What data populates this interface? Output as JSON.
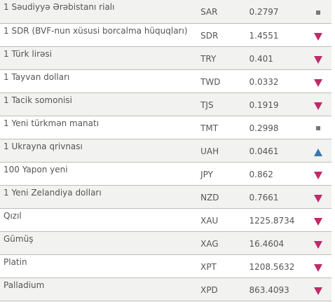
{
  "colors": {
    "down": "#c2286b",
    "up": "#3778b4",
    "same": "#777777",
    "border": "#bdbdb8"
  },
  "rates": [
    {
      "name": "1 Səudiyyə Ərəbistanı rialı",
      "code": "SAR",
      "rate": "0.2797",
      "trend": "same"
    },
    {
      "name": "1 SDR (BVF-nun xüsusi borcalma hüquqları)",
      "code": "SDR",
      "rate": "1.4551",
      "trend": "down"
    },
    {
      "name": "1 Türk lirəsi",
      "code": "TRY",
      "rate": "0.401",
      "trend": "down"
    },
    {
      "name": "1 Tayvan dolları",
      "code": "TWD",
      "rate": "0.0332",
      "trend": "down"
    },
    {
      "name": "1 Tacik somonisi",
      "code": "TJS",
      "rate": "0.1919",
      "trend": "down"
    },
    {
      "name": "1 Yeni türkmən manatı",
      "code": "TMT",
      "rate": "0.2998",
      "trend": "same"
    },
    {
      "name": "1 Ukrayna qrivnası",
      "code": "UAH",
      "rate": "0.0461",
      "trend": "up"
    },
    {
      "name": "100 Yapon yeni",
      "code": "JPY",
      "rate": "0.862",
      "trend": "down"
    },
    {
      "name": "1 Yeni Zelandiya dolları",
      "code": "NZD",
      "rate": "0.7661",
      "trend": "down"
    },
    {
      "name": "Qızıl",
      "code": "XAU",
      "rate": "1225.8734",
      "trend": "down"
    },
    {
      "name": "Gümüş",
      "code": "XAG",
      "rate": "16.4604",
      "trend": "down"
    },
    {
      "name": "Platin",
      "code": "XPT",
      "rate": "1208.5632",
      "trend": "down"
    },
    {
      "name": "Palladium",
      "code": "XPD",
      "rate": "863.4093",
      "trend": "down"
    }
  ]
}
